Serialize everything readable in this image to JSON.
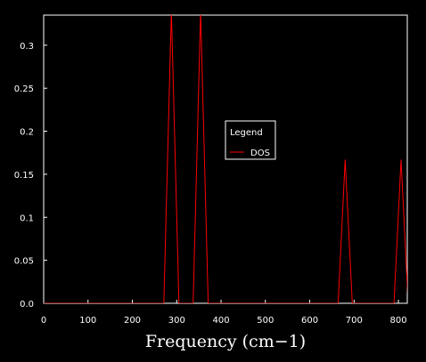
{
  "chart_data": {
    "type": "line",
    "xlabel": "Frequency (cm−1)",
    "ylabel": "",
    "xlim": [
      0,
      820
    ],
    "ylim": [
      0,
      0.335
    ],
    "xticks": [
      0,
      100,
      200,
      300,
      400,
      500,
      600,
      700,
      800
    ],
    "xtick_labels": [
      "0",
      "100",
      "200",
      "300",
      "400",
      "500",
      "600",
      "700",
      "800"
    ],
    "yticks": [
      0.0,
      0.05,
      0.1,
      0.15,
      0.2,
      0.25,
      0.3
    ],
    "ytick_labels": [
      "0.0",
      "0.05",
      "0.1",
      "0.15",
      "0.2",
      "0.25",
      "0.3"
    ],
    "grid": false,
    "legend": {
      "title": "Legend",
      "placement": "center-right"
    },
    "series": [
      {
        "name": "DOS",
        "color": "#ff0000",
        "x": [
          0,
          271,
          288,
          305,
          337,
          354,
          371,
          664,
          680,
          696,
          790,
          806,
          822
        ],
        "y": [
          0,
          0,
          0.34,
          0,
          0,
          0.34,
          0,
          0,
          0.167,
          0,
          0,
          0.167,
          0
        ]
      }
    ]
  }
}
